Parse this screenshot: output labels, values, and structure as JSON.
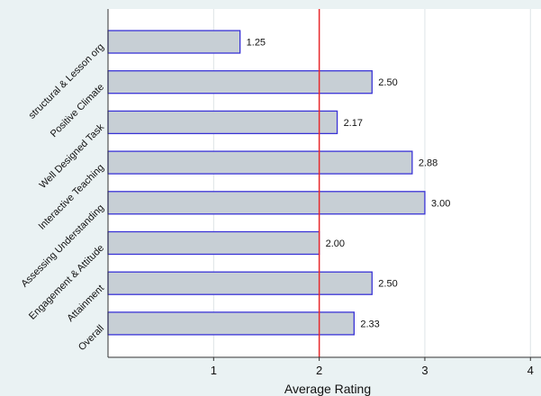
{
  "chart_data": {
    "type": "bar",
    "orientation": "horizontal",
    "categories": [
      "structural & Lesson org",
      "Positive Climate",
      "Well Designed Task",
      "Interactive Teaching",
      "Assessing Understanding",
      "Engagement & Attitude",
      "Attainment",
      "Overall"
    ],
    "values": [
      1.25,
      2.5,
      2.17,
      2.88,
      3.0,
      2.0,
      2.5,
      2.33
    ],
    "value_labels": [
      "1.25",
      "2.50",
      "2.17",
      "2.88",
      "3.00",
      "2.00",
      "2.50",
      "2.33"
    ],
    "xlabel": "Average Rating",
    "xlim": [
      0,
      4.1
    ],
    "xticks": [
      1,
      2,
      3,
      4
    ],
    "xtick_labels": [
      "1",
      "2",
      "3",
      "4"
    ],
    "reference_line": {
      "value": 2,
      "color": "#e8282c"
    },
    "grid": "vertical",
    "colors": {
      "background": "#eaf2f3",
      "plot_background": "#ffffff",
      "bar_fill": "#c7cfd5",
      "bar_stroke": "#3a34d6",
      "grid": "#dde3e6",
      "axis": "#333333"
    }
  }
}
